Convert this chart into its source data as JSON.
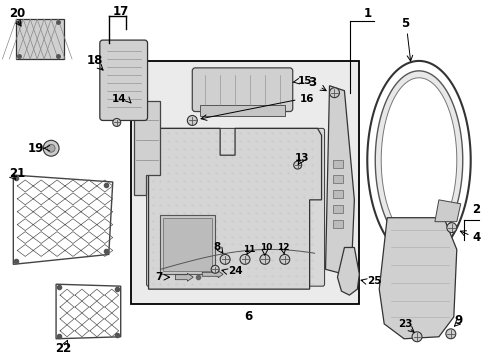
{
  "background_color": "#ffffff",
  "fig_width": 4.89,
  "fig_height": 3.6,
  "dpi": 100,
  "label_fontsize": 8.5,
  "label_fontsize_sm": 7.5
}
